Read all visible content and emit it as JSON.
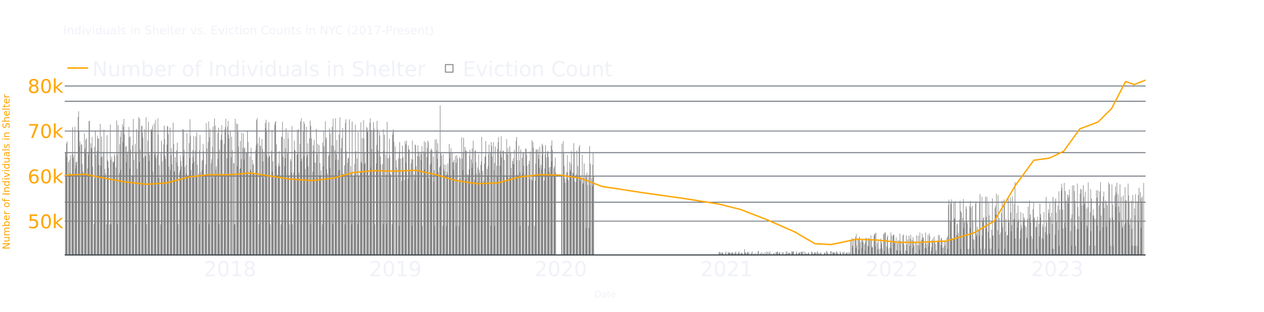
{
  "chart_data": {
    "type": "bar+line",
    "title": "Individuals in Shelter vs. Eviction Counts in NYC (2017-Present)",
    "xlabel": "Date",
    "ylabel": "Number of Individuals in Shelter",
    "x_range": [
      "2017-01-01",
      "2023-07-15"
    ],
    "y_range": [
      42500,
      82000
    ],
    "yticks": [
      50000,
      60000,
      70000,
      80000
    ],
    "ytick_labels": [
      "50k",
      "60k",
      "70k",
      "80k"
    ],
    "xticks": [
      "2018-01-01",
      "2019-01-01",
      "2020-01-01",
      "2021-01-01",
      "2022-01-01",
      "2023-01-01"
    ],
    "xtick_labels": [
      "2018",
      "2019",
      "2020",
      "2021",
      "2022",
      "2023"
    ],
    "legend_position": "top-left",
    "legend": [
      {
        "name": "Number of Individuals in Shelter",
        "symbol": "line"
      },
      {
        "name": "Eviction Count",
        "symbol": "square"
      }
    ],
    "colors": {
      "shelter_line": "#FFA500",
      "eviction_bars": "#808080",
      "axis_text": "#FFA500",
      "faint_text": "#f0f2f8",
      "gridline": "#5f6670"
    },
    "series": [
      {
        "name": "Number of Individuals in Shelter",
        "kind": "line",
        "points": [
          [
            "2017-01-01",
            60200
          ],
          [
            "2017-02-15",
            60400
          ],
          [
            "2017-04-01",
            59500
          ],
          [
            "2017-05-15",
            58700
          ],
          [
            "2017-07-01",
            58200
          ],
          [
            "2017-08-15",
            58500
          ],
          [
            "2017-10-01",
            59800
          ],
          [
            "2017-11-15",
            60300
          ],
          [
            "2018-01-01",
            60300
          ],
          [
            "2018-02-15",
            60700
          ],
          [
            "2018-04-01",
            60000
          ],
          [
            "2018-05-15",
            59300
          ],
          [
            "2018-07-01",
            59000
          ],
          [
            "2018-08-15",
            59500
          ],
          [
            "2018-10-01",
            60800
          ],
          [
            "2018-11-15",
            61200
          ],
          [
            "2019-01-01",
            61100
          ],
          [
            "2019-02-15",
            61300
          ],
          [
            "2019-04-01",
            60300
          ],
          [
            "2019-05-15",
            59000
          ],
          [
            "2019-07-01",
            58300
          ],
          [
            "2019-08-15",
            58500
          ],
          [
            "2019-10-01",
            59800
          ],
          [
            "2019-11-15",
            60300
          ],
          [
            "2020-01-01",
            60200
          ],
          [
            "2020-02-15",
            59500
          ],
          [
            "2020-04-01",
            57700
          ],
          [
            "2020-07-01",
            56300
          ],
          [
            "2020-10-01",
            55000
          ],
          [
            "2020-12-15",
            53800
          ],
          [
            "2021-02-01",
            52600
          ],
          [
            "2021-04-01",
            50300
          ],
          [
            "2021-06-01",
            47600
          ],
          [
            "2021-07-15",
            45000
          ],
          [
            "2021-08-20",
            44800
          ],
          [
            "2021-10-15",
            46000
          ],
          [
            "2021-12-01",
            45800
          ],
          [
            "2022-01-15",
            45300
          ],
          [
            "2022-03-01",
            45300
          ],
          [
            "2022-05-01",
            45600
          ],
          [
            "2022-07-01",
            47400
          ],
          [
            "2022-08-15",
            50000
          ],
          [
            "2022-10-01",
            58000
          ],
          [
            "2022-11-10",
            63500
          ],
          [
            "2022-12-15",
            64000
          ],
          [
            "2023-01-15",
            65500
          ],
          [
            "2023-02-20",
            70500
          ],
          [
            "2023-04-01",
            72000
          ],
          [
            "2023-05-01",
            75000
          ],
          [
            "2023-06-01",
            81000
          ],
          [
            "2023-06-20",
            80300
          ],
          [
            "2023-07-15",
            81300
          ]
        ]
      },
      {
        "name": "Eviction Count",
        "kind": "bar",
        "segments": [
          {
            "start": "2017-01-02",
            "end": "2018-01-01",
            "low": 40,
            "high": 72,
            "peak": 75
          },
          {
            "start": "2018-01-03",
            "end": "2018-12-31",
            "low": 40,
            "high": 72,
            "peak": 94
          },
          {
            "start": "2019-01-02",
            "end": "2019-12-20",
            "low": 38,
            "high": 62,
            "peak": 78
          },
          {
            "start": "2020-01-02",
            "end": "2020-03-15",
            "low": 35,
            "high": 60,
            "peak": 76
          },
          {
            "start": "2020-12-15",
            "end": "2021-09-30",
            "low": 0,
            "high": 2,
            "peak": 3
          },
          {
            "start": "2021-10-01",
            "end": "2022-04-30",
            "low": 2,
            "high": 12,
            "peak": 15
          },
          {
            "start": "2022-05-01",
            "end": "2022-12-31",
            "low": 8,
            "high": 32,
            "peak": 38
          },
          {
            "start": "2023-01-02",
            "end": "2023-07-10",
            "low": 12,
            "high": 38,
            "peak": 52
          }
        ]
      }
    ]
  }
}
